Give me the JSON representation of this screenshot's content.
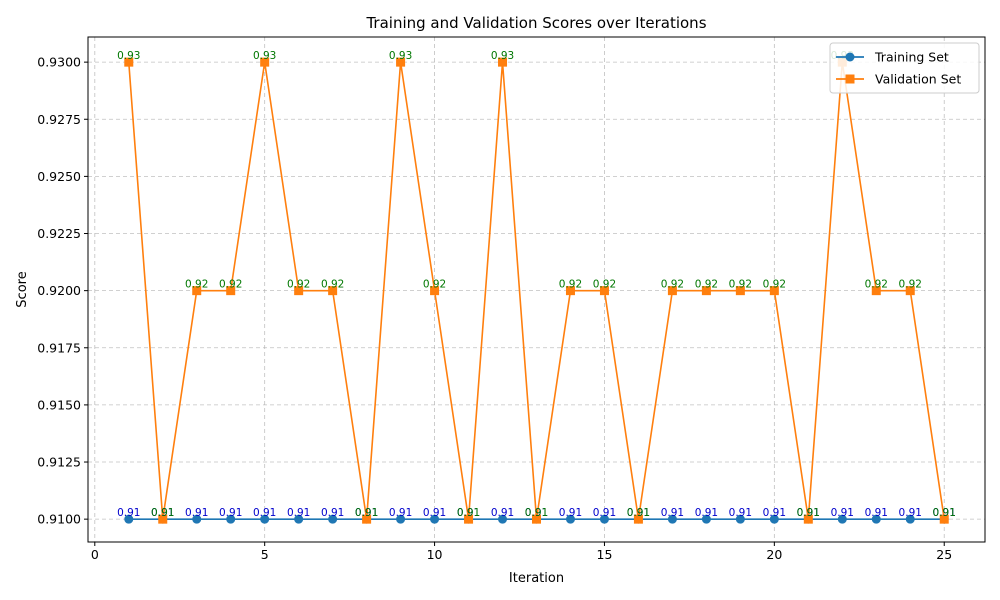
{
  "chart_data": {
    "type": "line",
    "title": "Training and Validation Scores over Iterations",
    "xlabel": "Iteration",
    "ylabel": "Score",
    "x": [
      1,
      2,
      3,
      4,
      5,
      6,
      7,
      8,
      9,
      10,
      11,
      12,
      13,
      14,
      15,
      16,
      17,
      18,
      19,
      20,
      21,
      22,
      23,
      24,
      25
    ],
    "xlim": [
      -0.2,
      26.2
    ],
    "ylim": [
      0.909,
      0.9311
    ],
    "xticks": [
      0,
      5,
      10,
      15,
      20,
      25
    ],
    "xtick_labels": [
      "0",
      "5",
      "10",
      "15",
      "20",
      "25"
    ],
    "yticks": [
      0.91,
      0.9125,
      0.915,
      0.9175,
      0.92,
      0.9225,
      0.925,
      0.9275,
      0.93
    ],
    "ytick_labels": [
      "0.9100",
      "0.9125",
      "0.9150",
      "0.9175",
      "0.9200",
      "0.9225",
      "0.9250",
      "0.9275",
      "0.9300"
    ],
    "grid": true,
    "legend_position": "top-right",
    "series": [
      {
        "name": "Training Set",
        "color": "#1f77b4",
        "label_color": "#0000cc",
        "marker": "circle",
        "values": [
          0.91,
          0.91,
          0.91,
          0.91,
          0.91,
          0.91,
          0.91,
          0.91,
          0.91,
          0.91,
          0.91,
          0.91,
          0.91,
          0.91,
          0.91,
          0.91,
          0.91,
          0.91,
          0.91,
          0.91,
          0.91,
          0.91,
          0.91,
          0.91,
          0.91
        ],
        "data_labels": [
          "0.91",
          "0.91",
          "0.91",
          "0.91",
          "0.91",
          "0.91",
          "0.91",
          "0.91",
          "0.91",
          "0.91",
          "0.91",
          "0.91",
          "0.91",
          "0.91",
          "0.91",
          "0.91",
          "0.91",
          "0.91",
          "0.91",
          "0.91",
          "0.91",
          "0.91",
          "0.91",
          "0.91",
          "0.91"
        ]
      },
      {
        "name": "Validation Set",
        "color": "#ff7f0e",
        "label_color": "#007700",
        "marker": "square",
        "values": [
          0.93,
          0.91,
          0.92,
          0.92,
          0.93,
          0.92,
          0.92,
          0.91,
          0.93,
          0.92,
          0.91,
          0.93,
          0.91,
          0.92,
          0.92,
          0.91,
          0.92,
          0.92,
          0.92,
          0.92,
          0.91,
          0.93,
          0.92,
          0.92,
          0.91
        ],
        "data_labels": [
          "0.93",
          "0.91",
          "0.92",
          "0.92",
          "0.93",
          "0.92",
          "0.92",
          "0.91",
          "0.93",
          "0.92",
          "0.91",
          "0.93",
          "0.91",
          "0.92",
          "0.92",
          "0.91",
          "0.92",
          "0.92",
          "0.92",
          "0.92",
          "0.91",
          "0.93",
          "0.92",
          "0.92",
          "0.91"
        ]
      }
    ]
  }
}
